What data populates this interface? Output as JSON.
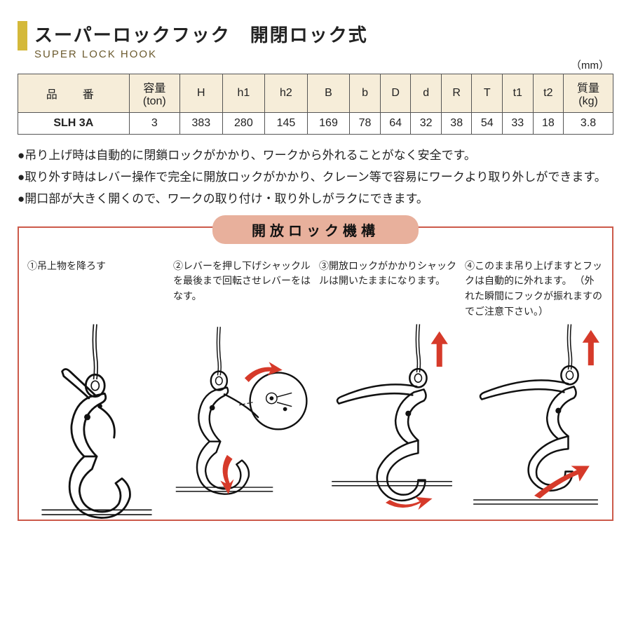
{
  "header": {
    "title_jp": "スーパーロックフック　開閉ロック式",
    "title_en": "SUPER LOCK HOOK",
    "accent_color": "#d4b93a"
  },
  "table": {
    "unit_label": "（mm）",
    "header_bg": "#f6edd9",
    "border_color": "#555555",
    "columns": [
      "品　番",
      "容量\n(ton)",
      "H",
      "h1",
      "h2",
      "B",
      "b",
      "D",
      "d",
      "R",
      "T",
      "t1",
      "t2",
      "質量\n(kg)"
    ],
    "rows": [
      [
        "SLH 3A",
        "3",
        "383",
        "280",
        "145",
        "169",
        "78",
        "64",
        "32",
        "38",
        "54",
        "33",
        "18",
        "3.8"
      ]
    ]
  },
  "bullets": [
    "●吊り上げ時は自動的に閉鎖ロックがかかり、ワークから外れることがなく安全です。",
    "●取り外す時はレバー操作で完全に開放ロックがかかり、クレーン等で容易にワークより取り外しができます。",
    "●開口部が大きく開くので、ワークの取り付け・取り外しがラクにできます。"
  ],
  "diagram": {
    "title": "開放ロック機構",
    "title_bg": "#e8b09c",
    "box_border": "#cc5a4a",
    "arrow_color": "#d63a2a",
    "steps": [
      {
        "label": "①吊上物を降ろす"
      },
      {
        "label": "②レバーを押し下げシャックルを最後まで回転させレバーをはなす。"
      },
      {
        "label": "③開放ロックがかかりシャックルは開いたままになります。"
      },
      {
        "label": "④このまま吊り上げますとフックは自動的に外れます。\n（外れた瞬間にフックが振れますのでご注意下さい。）"
      }
    ]
  }
}
